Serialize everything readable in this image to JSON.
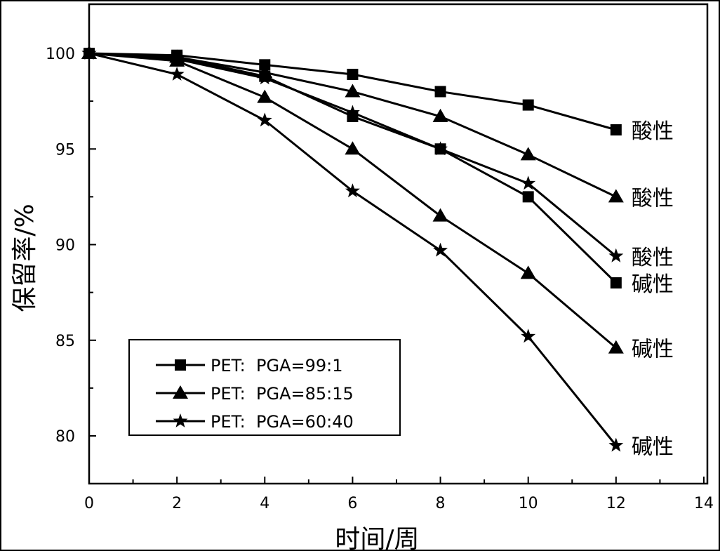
{
  "chart_data": {
    "type": "line",
    "title": "",
    "xlabel": "时间/周",
    "ylabel": "保留率/%",
    "xlim": [
      0,
      14
    ],
    "ylim": [
      77.5,
      102.6
    ],
    "xticks": [
      "0",
      "2",
      "4",
      "6",
      "8",
      "10",
      "12",
      "14"
    ],
    "yticks": [
      "80",
      "85",
      "90",
      "95",
      "100"
    ],
    "grid": false,
    "legend_position": "bottom-left",
    "x": [
      0,
      2,
      4,
      6,
      8,
      10,
      12
    ],
    "series": [
      {
        "name": "PET:  PGA=99:1",
        "marker": "square",
        "condition": "酸性",
        "values": [
          100,
          99.9,
          99.4,
          98.9,
          98.0,
          97.3,
          96.0
        ]
      },
      {
        "name": "PET:  PGA=85:15",
        "marker": "triangle",
        "condition": "酸性",
        "values": [
          100,
          99.8,
          99.0,
          98.0,
          96.7,
          94.7,
          92.5
        ]
      },
      {
        "name": "PET:  PGA=60:40",
        "marker": "star",
        "condition": "酸性",
        "values": [
          100,
          99.7,
          98.7,
          96.9,
          95.0,
          93.2,
          89.4
        ]
      },
      {
        "name": "PET:  PGA=99:1",
        "marker": "square",
        "condition": "碱性",
        "values": [
          100,
          99.8,
          98.8,
          96.7,
          95.0,
          92.5,
          88.0
        ]
      },
      {
        "name": "PET:  PGA=85:15",
        "marker": "triangle",
        "condition": "碱性",
        "values": [
          100,
          99.6,
          97.7,
          95.0,
          91.5,
          88.5,
          84.6
        ]
      },
      {
        "name": "PET:  PGA=60:40",
        "marker": "star",
        "condition": "碱性",
        "values": [
          100,
          98.9,
          96.5,
          92.8,
          89.7,
          85.2,
          79.5
        ]
      }
    ],
    "legend": [
      "PET:  PGA=99:1",
      "PET:  PGA=85:15",
      "PET:  PGA=60:40"
    ]
  }
}
